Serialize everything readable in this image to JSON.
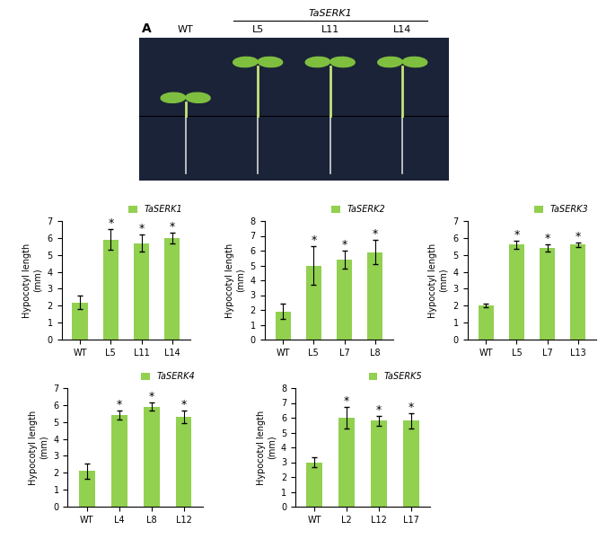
{
  "photo_panel": {
    "label": "A",
    "group_label": "TaSERK1",
    "lanes": [
      "WT",
      "L5",
      "L11",
      "L14"
    ]
  },
  "chart_data": [
    {
      "type": "bar",
      "ylabel": "Hypocotyl length\n(mm)",
      "categories": [
        "WT",
        "L5",
        "L11",
        "L14"
      ],
      "series": [
        {
          "name": "TaSERK1",
          "color": "#92d050",
          "values": [
            2.2,
            5.9,
            5.7,
            6.0
          ],
          "errors": [
            0.4,
            0.6,
            0.5,
            0.3
          ]
        }
      ],
      "annotations": [
        null,
        "*",
        "*",
        "*"
      ],
      "ylim": [
        0,
        7
      ],
      "yticks": [
        0,
        1,
        2,
        3,
        4,
        5,
        6,
        7
      ],
      "legend": "upper right"
    },
    {
      "type": "bar",
      "ylabel": "Hypocotyl length\n(mm)",
      "categories": [
        "WT",
        "L5",
        "L7",
        "L8"
      ],
      "series": [
        {
          "name": "TaSERK2",
          "color": "#92d050",
          "values": [
            1.9,
            5.0,
            5.4,
            5.9
          ],
          "errors": [
            0.5,
            1.3,
            0.6,
            0.8
          ]
        }
      ],
      "annotations": [
        null,
        "*",
        "*",
        "*"
      ],
      "ylim": [
        0,
        8
      ],
      "yticks": [
        0,
        1,
        2,
        3,
        4,
        5,
        6,
        7,
        8
      ],
      "legend": "upper right"
    },
    {
      "type": "bar",
      "ylabel": "Hypocotyl length\n(mm)",
      "categories": [
        "WT",
        "L5",
        "L7",
        "L13"
      ],
      "series": [
        {
          "name": "TaSERK3",
          "color": "#92d050",
          "values": [
            2.0,
            5.6,
            5.4,
            5.6
          ],
          "errors": [
            0.1,
            0.25,
            0.2,
            0.15
          ]
        }
      ],
      "annotations": [
        null,
        "*",
        "*",
        "*"
      ],
      "ylim": [
        0,
        7
      ],
      "yticks": [
        0,
        1,
        2,
        3,
        4,
        5,
        6,
        7
      ],
      "legend": "upper right"
    },
    {
      "type": "bar",
      "ylabel": "Hypocotyl length\n(mm)",
      "categories": [
        "WT",
        "L4",
        "L8",
        "L12"
      ],
      "series": [
        {
          "name": "TaSERK4",
          "color": "#92d050",
          "values": [
            2.1,
            5.4,
            5.9,
            5.3
          ],
          "errors": [
            0.45,
            0.25,
            0.25,
            0.35
          ]
        }
      ],
      "annotations": [
        null,
        "*",
        "*",
        "*"
      ],
      "ylim": [
        0,
        7
      ],
      "yticks": [
        0,
        1,
        2,
        3,
        4,
        5,
        6,
        7
      ],
      "legend": "upper right"
    },
    {
      "type": "bar",
      "ylabel": "Hypocotyl length\n(mm)",
      "categories": [
        "WT",
        "L2",
        "L12",
        "L17"
      ],
      "series": [
        {
          "name": "TaSERK5",
          "color": "#92d050",
          "values": [
            3.0,
            6.0,
            5.8,
            5.8
          ],
          "errors": [
            0.35,
            0.7,
            0.35,
            0.5
          ]
        }
      ],
      "annotations": [
        null,
        "*",
        "*",
        "*"
      ],
      "ylim": [
        0,
        8
      ],
      "yticks": [
        0,
        1,
        2,
        3,
        4,
        5,
        6,
        7,
        8
      ],
      "legend": "upper right"
    }
  ]
}
